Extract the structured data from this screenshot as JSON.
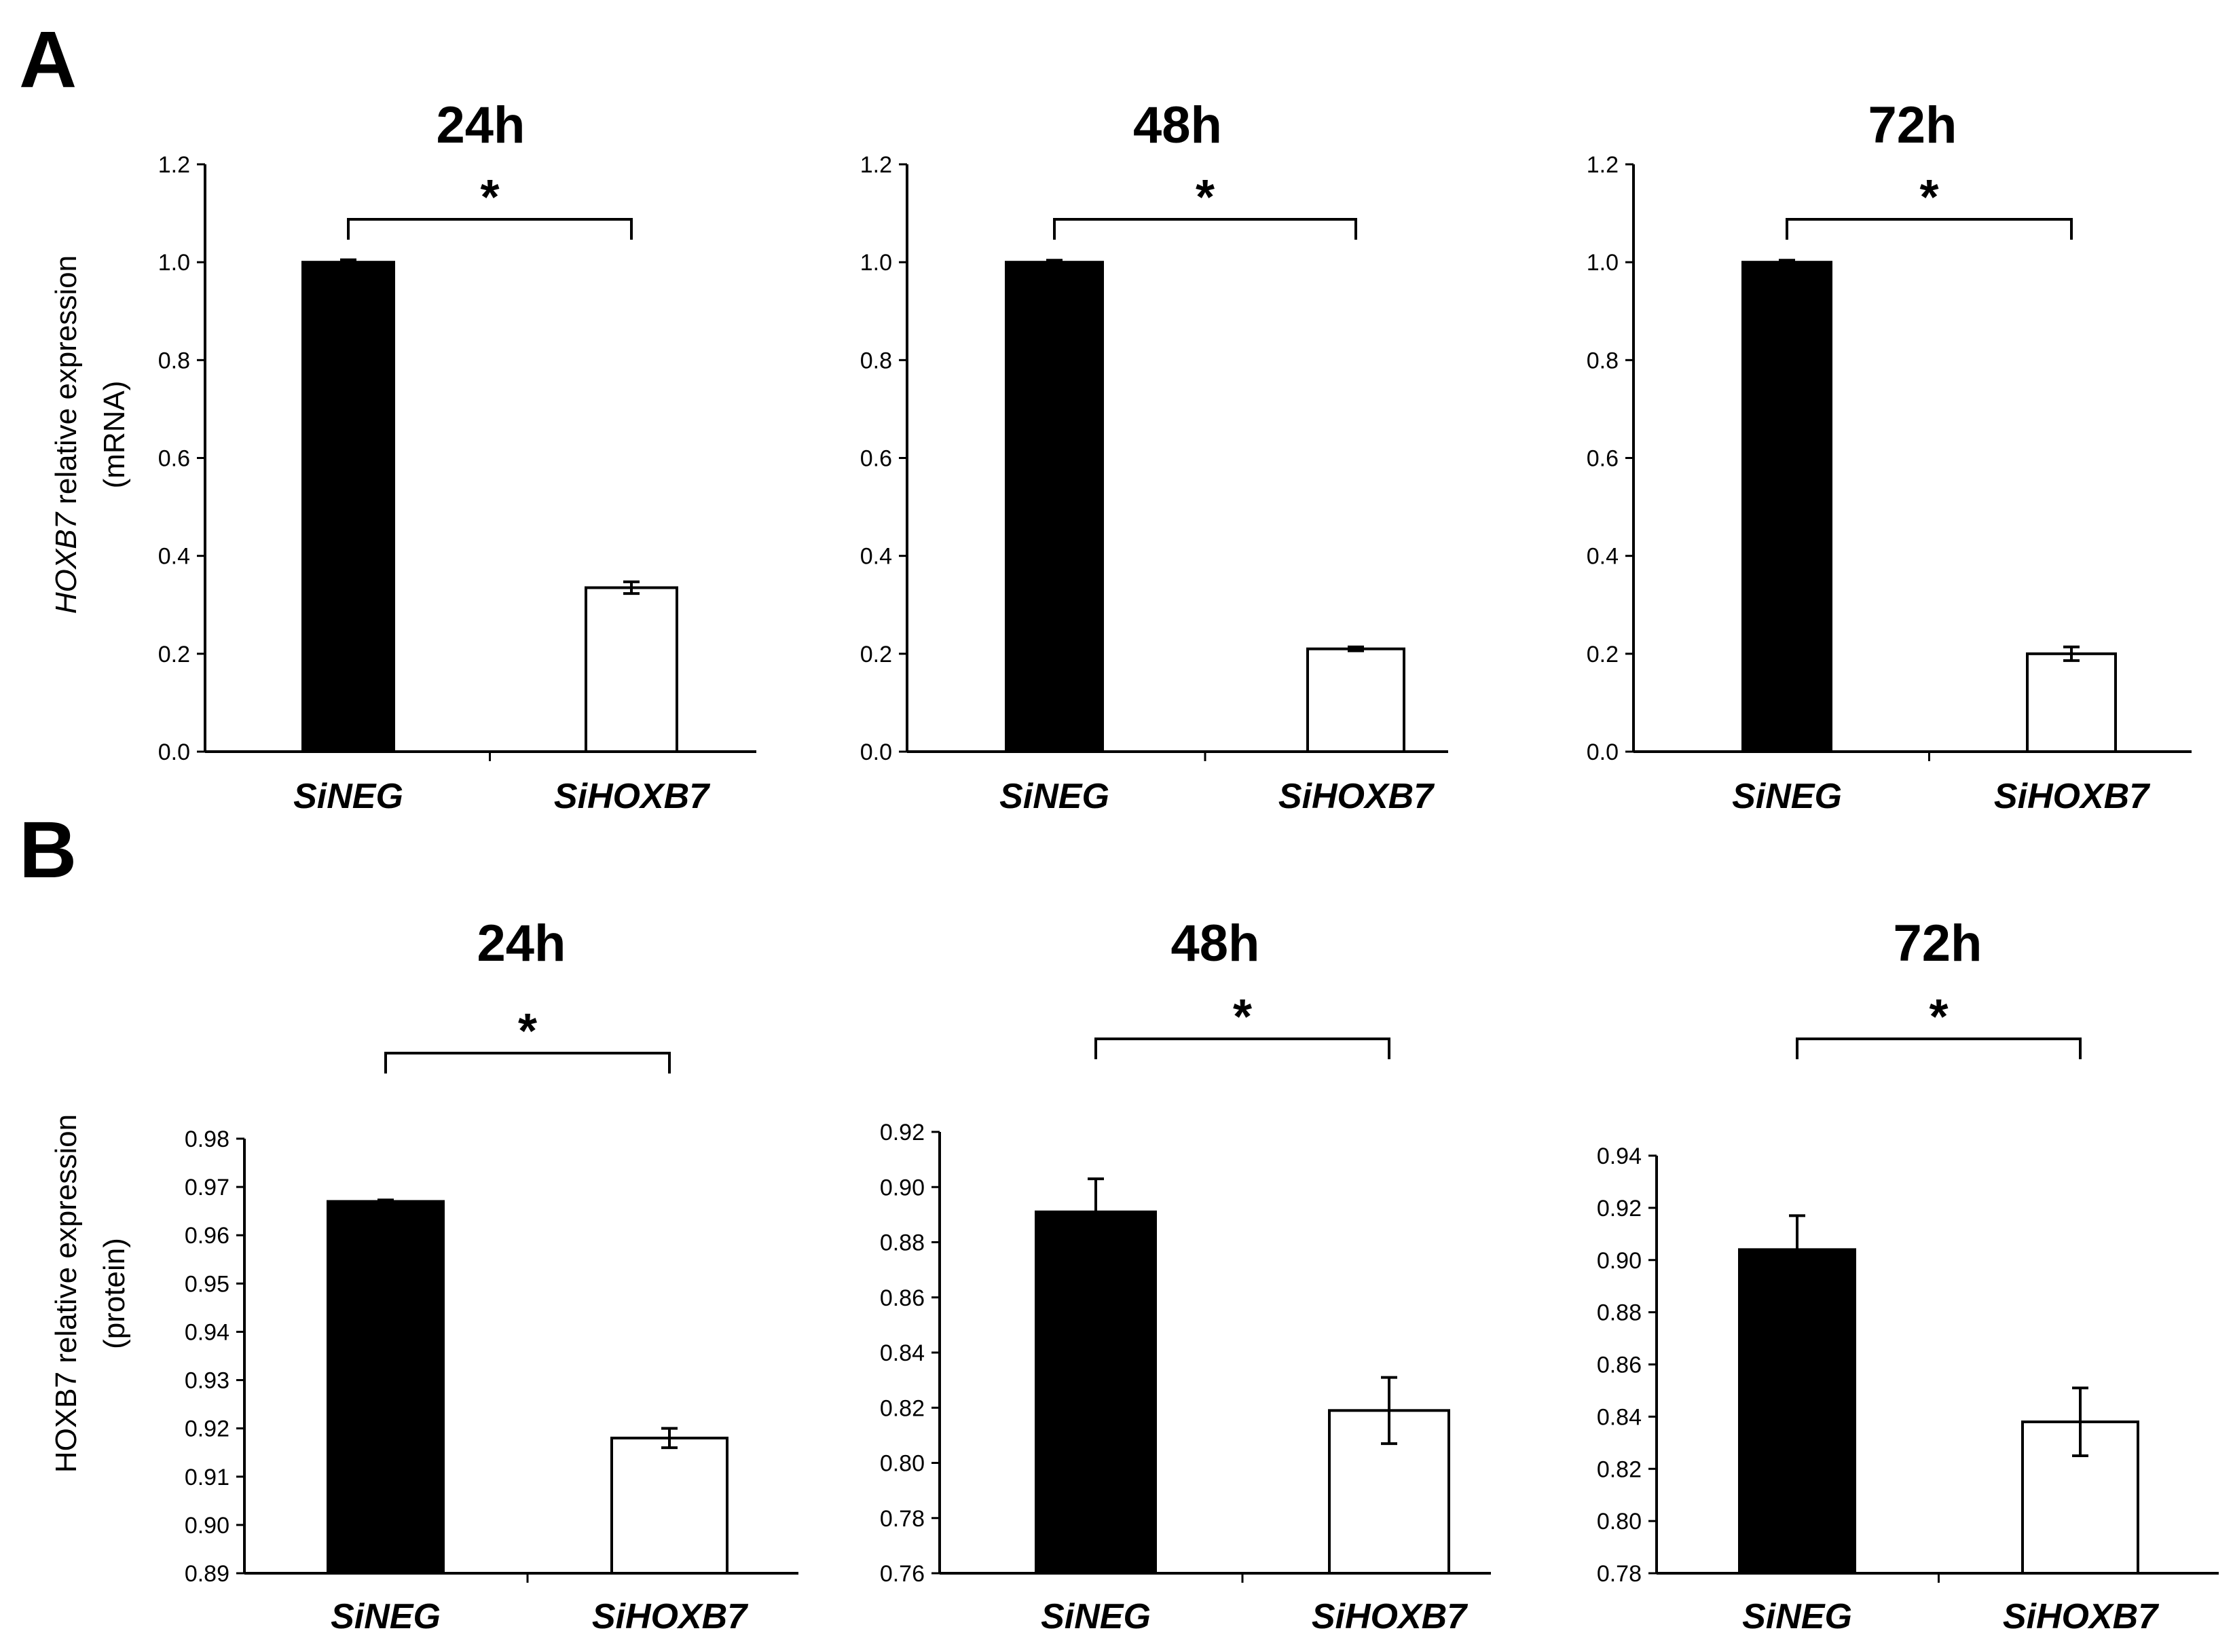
{
  "panels": [
    {
      "letter": "A",
      "ylabel_italic": "HOXB7",
      "ylabel_rest": " relative expression",
      "ylabel_line2": "(mRNA)"
    },
    {
      "letter": "B",
      "ylabel_italic": "",
      "ylabel_rest": "HOXB7 relative expression",
      "ylabel_line2": "(protein)"
    }
  ],
  "chart_data": [
    {
      "panel": "A",
      "type": "bar",
      "title": "24h",
      "categories": [
        "SiNEG",
        "SiHOXB7"
      ],
      "values": [
        1.0,
        0.335
      ],
      "errors": [
        0.005,
        0.012
      ],
      "fills": [
        "#000000",
        "#ffffff"
      ],
      "ylim": [
        0,
        1.2
      ],
      "yticks": [
        "0.0",
        "0.2",
        "0.4",
        "0.6",
        "0.8",
        "1.0",
        "1.2"
      ],
      "significance": "*",
      "xlabel": "",
      "ylabel": "HOXB7 relative expression (mRNA)"
    },
    {
      "panel": "A",
      "type": "bar",
      "title": "48h",
      "categories": [
        "SiNEG",
        "SiHOXB7"
      ],
      "values": [
        1.0,
        0.21
      ],
      "errors": [
        0.004,
        0.004
      ],
      "fills": [
        "#000000",
        "#ffffff"
      ],
      "ylim": [
        0,
        1.2
      ],
      "yticks": [
        "0.0",
        "0.2",
        "0.4",
        "0.6",
        "0.8",
        "1.0",
        "1.2"
      ],
      "significance": "*",
      "xlabel": "",
      "ylabel": ""
    },
    {
      "panel": "A",
      "type": "bar",
      "title": "72h",
      "categories": [
        "SiNEG",
        "SiHOXB7"
      ],
      "values": [
        1.0,
        0.2
      ],
      "errors": [
        0.004,
        0.014
      ],
      "fills": [
        "#000000",
        "#ffffff"
      ],
      "ylim": [
        0,
        1.2
      ],
      "yticks": [
        "0.0",
        "0.2",
        "0.4",
        "0.6",
        "0.8",
        "1.0",
        "1.2"
      ],
      "significance": "*",
      "xlabel": "",
      "ylabel": ""
    },
    {
      "panel": "B",
      "type": "bar",
      "title": "24h",
      "categories": [
        "SiNEG",
        "SiHOXB7"
      ],
      "values": [
        0.967,
        0.918
      ],
      "errors": [
        0.0003,
        0.002
      ],
      "fills": [
        "#000000",
        "#ffffff"
      ],
      "ylim": [
        0.89,
        0.98
      ],
      "yticks": [
        "0.89",
        "0.90",
        "0.91",
        "0.92",
        "0.93",
        "0.94",
        "0.95",
        "0.96",
        "0.97",
        "0.98"
      ],
      "significance": "*",
      "xlabel": "",
      "ylabel": "HOXB7 relative expression (protein)"
    },
    {
      "panel": "B",
      "type": "bar",
      "title": "48h",
      "categories": [
        "SiNEG",
        "SiHOXB7"
      ],
      "values": [
        0.891,
        0.819
      ],
      "errors": [
        0.012,
        0.012
      ],
      "fills": [
        "#000000",
        "#ffffff"
      ],
      "ylim": [
        0.76,
        0.92
      ],
      "yticks": [
        "0.76",
        "0.78",
        "0.80",
        "0.82",
        "0.84",
        "0.86",
        "0.88",
        "0.90",
        "0.92"
      ],
      "significance": "*",
      "xlabel": "",
      "ylabel": ""
    },
    {
      "panel": "B",
      "type": "bar",
      "title": "72h",
      "categories": [
        "SiNEG",
        "SiHOXB7"
      ],
      "values": [
        0.904,
        0.838
      ],
      "errors": [
        0.013,
        0.013
      ],
      "fills": [
        "#000000",
        "#ffffff"
      ],
      "ylim": [
        0.78,
        0.94
      ],
      "yticks": [
        "0.78",
        "0.80",
        "0.82",
        "0.84",
        "0.86",
        "0.88",
        "0.90",
        "0.92",
        "0.94"
      ],
      "significance": "*",
      "xlabel": "",
      "ylabel": ""
    }
  ]
}
